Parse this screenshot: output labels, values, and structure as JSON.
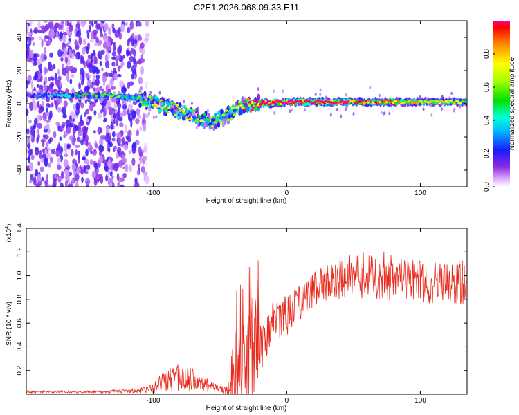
{
  "figure_title": "C2E1.2026.068.09.33.E11",
  "chart_data": [
    {
      "type": "heatmap",
      "title": "C2E1.2026.068.09.33.E11",
      "xlabel": "Height of straight line (km)",
      "ylabel": "Frequency (Hz)",
      "xlim": [
        -195,
        135
      ],
      "ylim": [
        -50,
        50
      ],
      "xticks": [
        -100,
        0,
        100
      ],
      "yticks": [
        -40,
        -20,
        0,
        20,
        40
      ],
      "xtick_labels": [
        "-100",
        "0",
        "100"
      ],
      "ytick_labels": [
        "-40",
        "-20",
        "0",
        "20",
        "40"
      ],
      "colorbar": {
        "label": "Normalized spectral amplitude",
        "range": [
          0.0,
          1.0
        ],
        "ticks": [
          0.0,
          0.2,
          0.4,
          0.6,
          0.8
        ],
        "tick_labels": [
          "0.0",
          "0.2",
          "0.4",
          "0.6",
          "0.8"
        ]
      },
      "ridge": {
        "description_points": [
          {
            "x": -190,
            "freq": 5,
            "amp": 0.2
          },
          {
            "x": -160,
            "freq": 5,
            "amp": 0.35
          },
          {
            "x": -130,
            "freq": 5,
            "amp": 0.4
          },
          {
            "x": -110,
            "freq": 3,
            "amp": 0.45
          },
          {
            "x": -90,
            "freq": -2,
            "amp": 0.5
          },
          {
            "x": -70,
            "freq": -7,
            "amp": 0.5
          },
          {
            "x": -55,
            "freq": -11,
            "amp": 0.45
          },
          {
            "x": -45,
            "freq": -7,
            "amp": 0.45
          },
          {
            "x": -35,
            "freq": -2,
            "amp": 0.6
          },
          {
            "x": -25,
            "freq": 0,
            "amp": 0.85
          },
          {
            "x": 0,
            "freq": 1,
            "amp": 0.9
          },
          {
            "x": 50,
            "freq": 1,
            "amp": 0.75
          },
          {
            "x": 100,
            "freq": 1,
            "amp": 0.55
          },
          {
            "x": 135,
            "freq": 1,
            "amp": 0.5
          }
        ],
        "noise_region_x": [
          -195,
          -112
        ]
      }
    },
    {
      "type": "line",
      "title": "",
      "xlabel": "Height of straight line (km)",
      "ylabel": "SNR (10 * v/v)",
      "y_multiplier_label": "(x10",
      "y_multiplier_exp": "4",
      "xlim": [
        -195,
        135
      ],
      "ylim": [
        0,
        1.4
      ],
      "xticks": [
        -100,
        0,
        100
      ],
      "yticks": [
        0.2,
        0.4,
        0.6,
        0.8,
        1.0,
        1.2,
        1.4
      ],
      "xtick_labels": [
        "-100",
        "0",
        "100"
      ],
      "ytick_labels": [
        "0.2",
        "0.4",
        "0.6",
        "0.8",
        "1.0",
        "1.2",
        "1.4"
      ],
      "color": "#e8291c",
      "series_envelope": {
        "x": [
          -195,
          -140,
          -110,
          -100,
          -90,
          -80,
          -70,
          -60,
          -50,
          -42,
          -38,
          -34,
          -30,
          -26,
          -22,
          -18,
          -14,
          -10,
          -5,
          0,
          10,
          20,
          30,
          40,
          50,
          60,
          70,
          80,
          90,
          100,
          110,
          120,
          130,
          135
        ],
        "base": [
          0.02,
          0.02,
          0.03,
          0.06,
          0.12,
          0.14,
          0.12,
          0.08,
          0.04,
          0.05,
          0.12,
          0.22,
          0.3,
          0.35,
          0.42,
          0.48,
          0.52,
          0.58,
          0.62,
          0.66,
          0.78,
          0.88,
          0.94,
          0.98,
          1.0,
          1.0,
          1.0,
          0.98,
          0.96,
          0.96,
          0.94,
          0.93,
          0.95,
          0.9
        ],
        "spread": [
          0.01,
          0.01,
          0.02,
          0.05,
          0.1,
          0.12,
          0.1,
          0.06,
          0.03,
          0.08,
          0.3,
          0.35,
          0.4,
          0.5,
          0.35,
          0.25,
          0.2,
          0.2,
          0.2,
          0.18,
          0.16,
          0.16,
          0.16,
          0.18,
          0.18,
          0.2,
          0.22,
          0.2,
          0.18,
          0.18,
          0.18,
          0.17,
          0.2,
          0.2
        ]
      }
    }
  ]
}
